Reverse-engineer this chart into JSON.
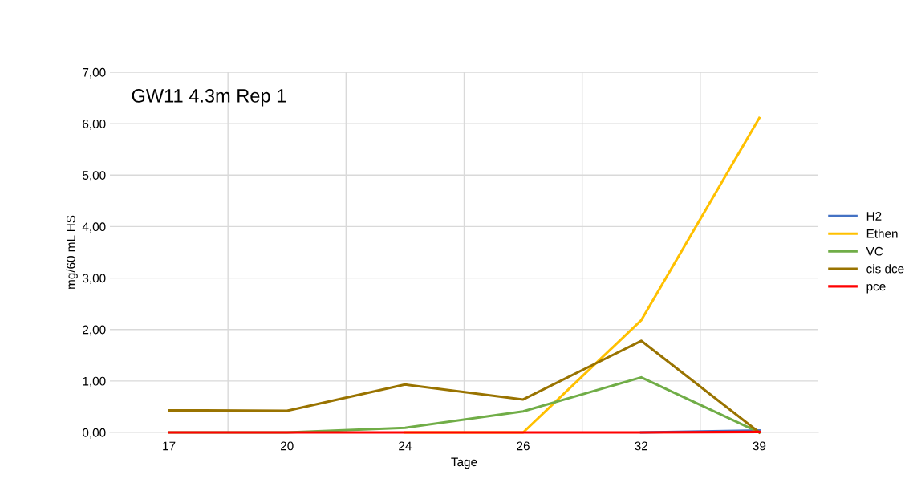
{
  "chart_data": {
    "type": "line",
    "title": "GW11 4.3m Rep 1",
    "xlabel": "Tage",
    "ylabel": "mg/60 mL HS",
    "categories": [
      "17",
      "20",
      "24",
      "26",
      "32",
      "39"
    ],
    "series": [
      {
        "name": "H2",
        "color": "#4472c4",
        "values": [
          null,
          null,
          null,
          null,
          0,
          0.04
        ]
      },
      {
        "name": "Ethen",
        "color": "#ffc000",
        "values": [
          null,
          null,
          0,
          0,
          2.18,
          6.11
        ]
      },
      {
        "name": "VC",
        "color": "#70ad47",
        "values": [
          0,
          0,
          0.09,
          0.41,
          1.07,
          0
        ]
      },
      {
        "name": "cis dce",
        "color": "#997300",
        "values": [
          0.43,
          0.42,
          0.93,
          0.64,
          1.78,
          0
        ]
      },
      {
        "name": "pce",
        "color": "#ff0000",
        "values": [
          0,
          0,
          0,
          0,
          0,
          0.01
        ]
      }
    ],
    "ylim": [
      0,
      7
    ],
    "yticks": [
      {
        "value": 0,
        "label": "0,00"
      },
      {
        "value": 1,
        "label": "1,00"
      },
      {
        "value": 2,
        "label": "2,00"
      },
      {
        "value": 3,
        "label": "3,00"
      },
      {
        "value": 4,
        "label": "4,00"
      },
      {
        "value": 5,
        "label": "5,00"
      },
      {
        "value": 6,
        "label": "6,00"
      },
      {
        "value": 7,
        "label": "7,00"
      }
    ],
    "grid": true,
    "legend": "right",
    "marker": "none",
    "line_style": "solid"
  }
}
